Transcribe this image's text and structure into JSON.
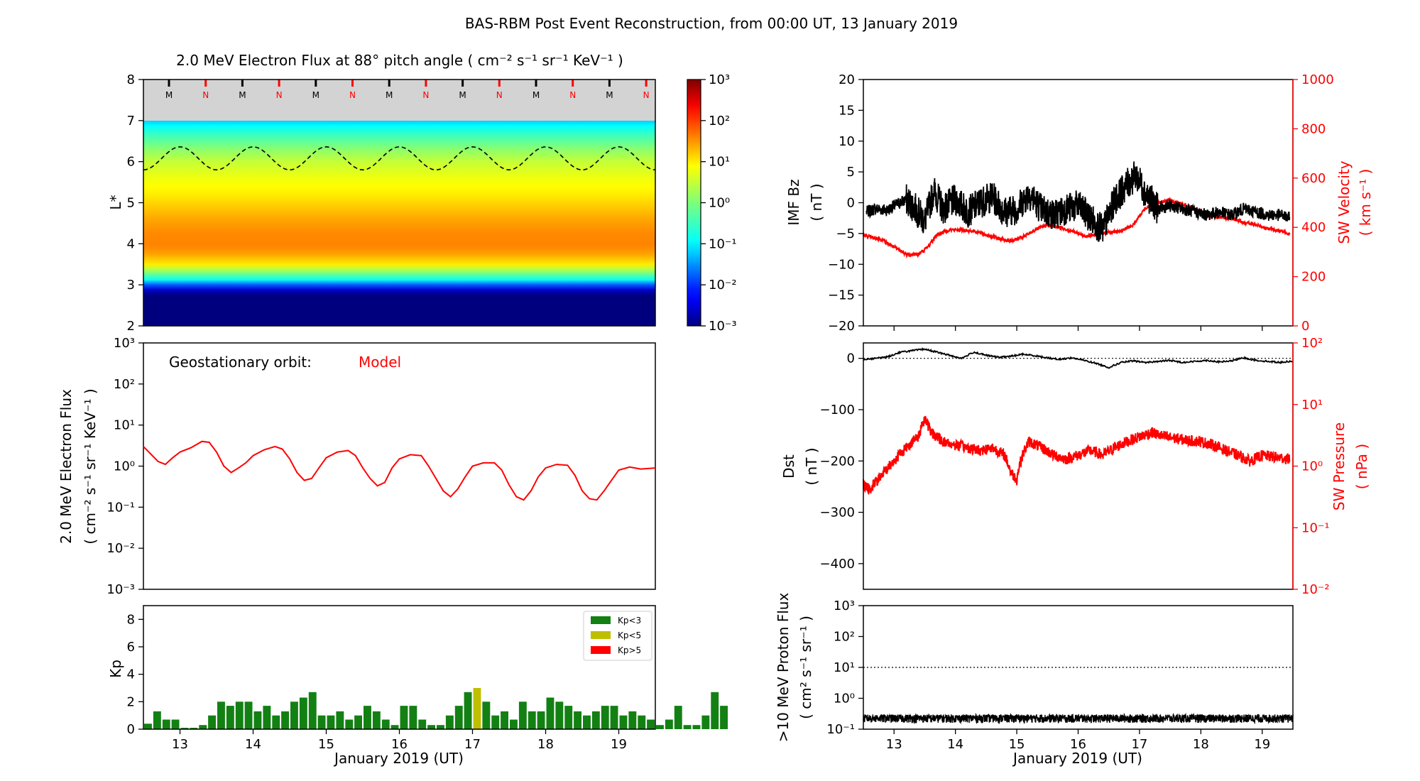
{
  "figure": {
    "title": "BAS-RBM Post Event Reconstruction, from 00:00 UT, 13 January 2019",
    "xlabel": "January 2019 (UT)",
    "xticks": [
      "13",
      "14",
      "15",
      "16",
      "17",
      "18",
      "19"
    ]
  },
  "colors": {
    "red": "#ff0000",
    "black": "#000000",
    "kp_low": "#138013",
    "kp_mid": "#bfbf00",
    "kp_high": "#ff0000"
  },
  "chart_data": [
    {
      "id": "flux_spectrogram",
      "type": "heatmap",
      "title": "2.0 MeV Electron Flux at 88° pitch angle ( cm⁻² s⁻¹ sr⁻¹ KeV⁻¹ )",
      "ylabel": "L*",
      "ylim": [
        2,
        8
      ],
      "yticks": [
        "2",
        "3",
        "4",
        "5",
        "6",
        "7",
        "8"
      ],
      "xlim": [
        12.5,
        19.5
      ],
      "colorbar": {
        "scale": "log",
        "range": [
          0.001,
          1000
        ],
        "ticks": [
          "10⁻³",
          "10⁻²",
          "10⁻¹",
          "10⁰",
          "10¹",
          "10²",
          "10³"
        ]
      },
      "profile_L": [
        2.0,
        2.8,
        2.95,
        3.1,
        3.3,
        3.5,
        3.8,
        4.0,
        4.3,
        4.6,
        4.9,
        5.2,
        5.6,
        6.0,
        6.3,
        6.6,
        6.8,
        7.0
      ],
      "profile_logflux": [
        -3.0,
        -3.0,
        -2.2,
        -1.0,
        0.0,
        1.0,
        1.5,
        1.6,
        1.55,
        1.4,
        1.2,
        1.0,
        0.8,
        0.5,
        0.1,
        -0.4,
        -0.8,
        -1.2
      ],
      "local_time_markers": [
        "M",
        "N",
        "M",
        "N",
        "M",
        "N",
        "M",
        "N",
        "M",
        "N",
        "M",
        "N",
        "M",
        "N"
      ],
      "geo_L_range": [
        5.8,
        6.4
      ]
    },
    {
      "id": "geo_flux",
      "type": "line",
      "annotation": "Geostationary orbit:",
      "annotation_model": "Model",
      "ylabel": "2.0 MeV Electron Flux",
      "ylabel_units": "( cm⁻² s⁻¹ sr⁻¹ KeV⁻¹ )",
      "yscale": "log",
      "ylim": [
        0.001,
        1000
      ],
      "yticks": [
        "10⁻³",
        "10⁻²",
        "10⁻¹",
        "10⁰",
        "10¹",
        "10²",
        "10³"
      ],
      "xlim": [
        12.5,
        19.5
      ],
      "series": [
        {
          "name": "Model",
          "color": "#ff0000",
          "x": [
            12.5,
            12.7,
            12.8,
            12.9,
            13.0,
            13.15,
            13.3,
            13.4,
            13.5,
            13.6,
            13.7,
            13.8,
            13.9,
            14.0,
            14.15,
            14.3,
            14.4,
            14.5,
            14.6,
            14.7,
            14.8,
            14.9,
            15.0,
            15.15,
            15.3,
            15.4,
            15.5,
            15.6,
            15.7,
            15.8,
            15.9,
            16.0,
            16.15,
            16.3,
            16.4,
            16.5,
            16.6,
            16.7,
            16.8,
            16.9,
            17.0,
            17.15,
            17.3,
            17.4,
            17.5,
            17.6,
            17.7,
            17.8,
            17.9,
            18.0,
            18.15,
            18.3,
            18.4,
            18.5,
            18.6,
            18.7,
            18.8,
            18.9,
            19.0,
            19.15,
            19.3,
            19.5
          ],
          "y": [
            3.0,
            1.3,
            1.1,
            1.6,
            2.2,
            2.8,
            4.0,
            3.8,
            2.2,
            1.0,
            0.7,
            0.9,
            1.2,
            1.8,
            2.5,
            3.0,
            2.6,
            1.5,
            0.7,
            0.45,
            0.5,
            0.9,
            1.6,
            2.2,
            2.4,
            1.8,
            0.9,
            0.5,
            0.33,
            0.4,
            0.9,
            1.5,
            1.9,
            1.8,
            1.0,
            0.5,
            0.25,
            0.18,
            0.28,
            0.55,
            1.0,
            1.2,
            1.2,
            0.8,
            0.35,
            0.18,
            0.15,
            0.25,
            0.55,
            0.9,
            1.1,
            1.05,
            0.6,
            0.25,
            0.16,
            0.15,
            0.25,
            0.45,
            0.8,
            0.95,
            0.85,
            0.9
          ]
        }
      ]
    },
    {
      "id": "kp",
      "type": "bar",
      "ylabel": "Kp",
      "ylim": [
        0,
        9
      ],
      "yticks": [
        "0",
        "2",
        "4",
        "6",
        "8"
      ],
      "xlim": [
        12.5,
        19.5
      ],
      "bin_days": 0.125,
      "values": [
        0.4,
        1.3,
        0.7,
        0.7,
        0.1,
        0.1,
        0.3,
        1.0,
        2.0,
        1.7,
        2.0,
        2.0,
        1.3,
        1.7,
        1.0,
        1.3,
        2.0,
        2.3,
        2.7,
        1.0,
        1.0,
        1.3,
        0.7,
        1.0,
        1.7,
        1.3,
        0.7,
        0.3,
        1.7,
        1.7,
        0.7,
        0.3,
        0.3,
        1.0,
        1.7,
        2.7,
        3.0,
        2.0,
        1.0,
        1.3,
        0.7,
        2.0,
        1.3,
        1.3,
        2.3,
        2.0,
        1.7,
        1.3,
        1.0,
        1.3,
        1.7,
        1.7,
        1.0,
        1.3,
        1.0,
        0.7,
        0.3,
        0.7,
        1.7,
        0.3,
        0.3,
        1.0,
        2.7,
        1.7
      ],
      "legend": {
        "position": "top-right",
        "items": [
          "Kp<3",
          "Kp<5",
          "Kp>5"
        ]
      }
    },
    {
      "id": "imf_sw",
      "type": "line",
      "ylabel_left": "IMF Bz",
      "ylabel_left_units": "( nT )",
      "ylim_left": [
        -20,
        20
      ],
      "yticks_left": [
        "20",
        "15",
        "10",
        "5",
        "0",
        "−5",
        "−10",
        "−15",
        "−20"
      ],
      "ylabel_right": "SW Velocity",
      "ylabel_right_units": "( km s⁻¹ )",
      "ylim_right": [
        0,
        1000
      ],
      "yticks_right": [
        "1000",
        "800",
        "600",
        "400",
        "200",
        "0"
      ],
      "xlim": [
        12.5,
        19.5
      ],
      "series": [
        {
          "name": "IMF Bz",
          "axis": "left",
          "color": "#000000",
          "x": [
            12.55,
            12.7,
            12.9,
            13.0,
            13.2,
            13.35,
            13.5,
            13.65,
            13.8,
            14.0,
            14.2,
            14.4,
            14.6,
            14.8,
            15.0,
            15.2,
            15.4,
            15.6,
            15.8,
            16.0,
            16.2,
            16.4,
            16.6,
            16.8,
            16.95,
            17.1,
            17.3,
            17.5,
            17.7,
            17.9,
            18.1,
            18.3,
            18.5,
            18.7,
            18.9,
            19.1,
            19.3,
            19.45
          ],
          "y": [
            -1.5,
            -1.0,
            -1.2,
            -0.5,
            0.5,
            -1.0,
            -3.0,
            2.0,
            -1.0,
            0.5,
            -1.5,
            0.0,
            1.0,
            -1.5,
            -1.0,
            1.5,
            -1.0,
            -2.0,
            -1.0,
            -0.5,
            -2.5,
            -4.5,
            0.5,
            3.0,
            4.5,
            1.5,
            -1.0,
            -0.5,
            -1.0,
            -1.5,
            -2.0,
            -1.5,
            -2.0,
            -1.0,
            -1.5,
            -2.0,
            -2.0,
            -2.5
          ]
        },
        {
          "name": "SW Velocity",
          "axis": "right",
          "color": "#ff0000",
          "x": [
            12.5,
            12.8,
            13.0,
            13.2,
            13.4,
            13.55,
            13.7,
            13.9,
            14.1,
            14.3,
            14.5,
            14.7,
            14.9,
            15.1,
            15.3,
            15.5,
            15.7,
            15.9,
            16.1,
            16.3,
            16.5,
            16.7,
            16.9,
            17.1,
            17.3,
            17.5,
            17.7,
            17.9,
            18.1,
            18.3,
            18.5,
            18.7,
            18.9,
            19.1,
            19.3,
            19.45
          ],
          "y": [
            370,
            350,
            320,
            290,
            290,
            320,
            370,
            390,
            390,
            385,
            370,
            355,
            345,
            360,
            390,
            410,
            400,
            385,
            365,
            370,
            380,
            385,
            410,
            480,
            500,
            510,
            495,
            475,
            450,
            440,
            435,
            420,
            410,
            395,
            385,
            375
          ]
        }
      ]
    },
    {
      "id": "dst_swp",
      "type": "line",
      "ylabel_left": "Dst",
      "ylabel_left_units": "( nT )",
      "ylim_left": [
        -450,
        30
      ],
      "yticks_left": [
        "0",
        "−100",
        "−200",
        "−300",
        "−400"
      ],
      "ylabel_right": "SW Pressure",
      "ylabel_right_units": "( nPa )",
      "yscale_right": "log",
      "ylim_right": [
        0.01,
        100
      ],
      "yticks_right": [
        "10²",
        "10¹",
        "10⁰",
        "10⁻¹",
        "10⁻²"
      ],
      "xlim": [
        12.5,
        19.5
      ],
      "series": [
        {
          "name": "Dst",
          "axis": "left",
          "color": "#000000",
          "x": [
            12.5,
            12.7,
            12.9,
            13.1,
            13.3,
            13.5,
            13.7,
            13.9,
            14.1,
            14.3,
            14.5,
            14.7,
            14.9,
            15.1,
            15.3,
            15.5,
            15.7,
            15.9,
            16.1,
            16.3,
            16.5,
            16.7,
            16.9,
            17.1,
            17.3,
            17.5,
            17.7,
            17.9,
            18.1,
            18.3,
            18.5,
            18.7,
            18.9,
            19.1,
            19.3,
            19.5
          ],
          "y": [
            -2,
            0,
            3,
            12,
            15,
            18,
            12,
            6,
            0,
            12,
            6,
            2,
            4,
            8,
            5,
            1,
            -2,
            1,
            -4,
            -10,
            -18,
            -8,
            -5,
            -8,
            -6,
            -4,
            -8,
            -6,
            -4,
            -7,
            -5,
            1,
            -4,
            -6,
            -8,
            -5
          ]
        },
        {
          "name": "SW Pressure",
          "axis": "right",
          "color": "#ff0000",
          "x": [
            12.5,
            12.6,
            12.8,
            13.0,
            13.2,
            13.4,
            13.5,
            13.6,
            13.8,
            14.0,
            14.2,
            14.4,
            14.6,
            14.8,
            14.9,
            15.0,
            15.2,
            15.4,
            15.6,
            15.8,
            16.0,
            16.2,
            16.4,
            16.6,
            16.8,
            17.0,
            17.2,
            17.4,
            17.6,
            17.8,
            18.0,
            18.2,
            18.4,
            18.6,
            18.8,
            19.0,
            19.2,
            19.45
          ],
          "y": [
            0.5,
            0.4,
            0.7,
            1.2,
            2.0,
            3.0,
            6.0,
            3.5,
            2.5,
            2.2,
            2.0,
            1.8,
            2.0,
            1.5,
            0.8,
            0.6,
            2.5,
            2.0,
            1.5,
            1.3,
            1.5,
            1.8,
            1.5,
            2.0,
            2.5,
            3.0,
            3.5,
            3.0,
            2.8,
            2.6,
            2.5,
            2.2,
            1.8,
            1.5,
            1.2,
            1.5,
            1.4,
            1.3
          ]
        }
      ],
      "reference_line_left": 0
    },
    {
      "id": "proton",
      "type": "line",
      "ylabel": ">10 MeV Proton Flux",
      "ylabel_units": "( cm² s⁻¹ sr⁻¹ )",
      "yscale": "log",
      "ylim": [
        0.1,
        1000
      ],
      "yticks": [
        "10³",
        "10²",
        "10¹",
        "10⁰",
        "10⁻¹"
      ],
      "threshold": 10,
      "xlim": [
        12.5,
        19.5
      ],
      "series": [
        {
          "name": "Proton flux",
          "color": "#000000",
          "level_min": 0.16,
          "level_max": 0.3
        }
      ]
    }
  ]
}
